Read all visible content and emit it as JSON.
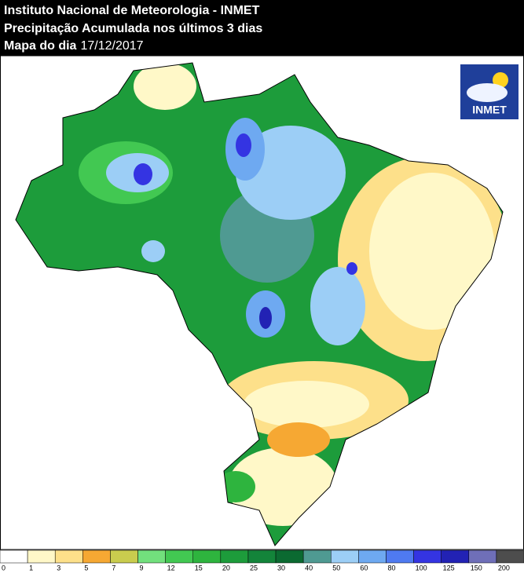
{
  "header": {
    "lines": [
      {
        "label": "Instituto Nacional de Meteorologia - INMET"
      },
      {
        "label": "Precipitação Acumulada nos últimos 3 dias"
      },
      {
        "label": "Mapa do dia"
      }
    ],
    "date": "17/12/2017"
  },
  "logo": {
    "label": "INMET"
  },
  "legend": {
    "ticks": [
      0,
      1,
      3,
      5,
      7,
      9,
      12,
      15,
      20,
      25,
      30,
      40,
      50,
      60,
      80,
      100,
      125,
      150,
      200
    ],
    "colors": [
      "#ffffff",
      "#fff8c8",
      "#fde08a",
      "#f6a833",
      "#c9cc4e",
      "#72e07d",
      "#42c852",
      "#2eb43e",
      "#1d9c3b",
      "#13843a",
      "#0b6a31",
      "#4f9a92",
      "#9ccef6",
      "#6ea9f1",
      "#4f7af0",
      "#3434e2",
      "#2222b4",
      "#6f6fb8",
      "#4d4d4d"
    ]
  }
}
